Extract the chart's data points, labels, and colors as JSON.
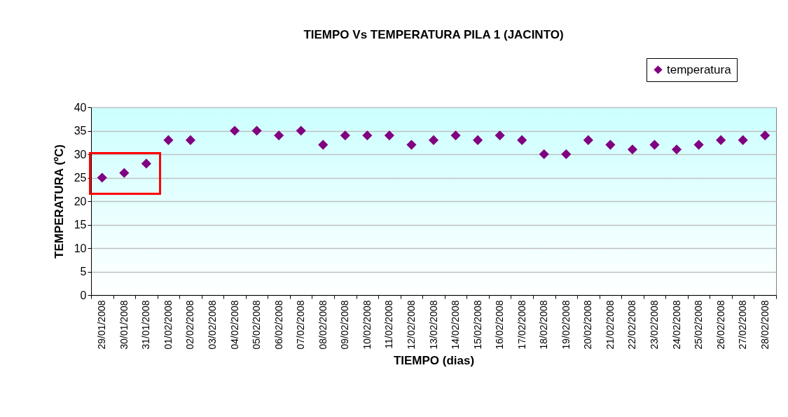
{
  "chart_data": {
    "type": "scatter",
    "title": "TIEMPO Vs TEMPERATURA PILA 1 (JACINTO)",
    "xlabel": "TIEMPO (dias)",
    "ylabel": "TEMPERATURA (ºC)",
    "categories": [
      "29/01/2008",
      "30/01/2008",
      "31/01/2008",
      "01/02/2008",
      "02/02/2008",
      "03/02/2008",
      "04/02/2008",
      "05/02/2008",
      "06/02/2008",
      "07/02/2008",
      "08/02/2008",
      "09/02/2008",
      "10/02/2008",
      "11/02/2008",
      "12/02/2008",
      "13/02/2008",
      "14/02/2008",
      "15/02/2008",
      "16/02/2008",
      "17/02/2008",
      "18/02/2008",
      "19/02/2008",
      "20/02/2008",
      "21/02/2008",
      "22/02/2008",
      "23/02/2008",
      "24/02/2008",
      "25/02/2008",
      "26/02/2008",
      "27/02/2008",
      "28/02/2008"
    ],
    "series": [
      {
        "name": "temperatura",
        "color": "#800080",
        "values": [
          25,
          26,
          28,
          33,
          33,
          null,
          35,
          35,
          34,
          35,
          32,
          34,
          34,
          34,
          32,
          33,
          34,
          33,
          34,
          33,
          30,
          30,
          33,
          32,
          31,
          32,
          31,
          32,
          33,
          33,
          34
        ]
      }
    ],
    "ylim": [
      0,
      40
    ],
    "yticks": [
      0,
      5,
      10,
      15,
      20,
      25,
      30,
      35,
      40
    ],
    "grid": "y",
    "legend": "top right",
    "marker": "diamond"
  }
}
